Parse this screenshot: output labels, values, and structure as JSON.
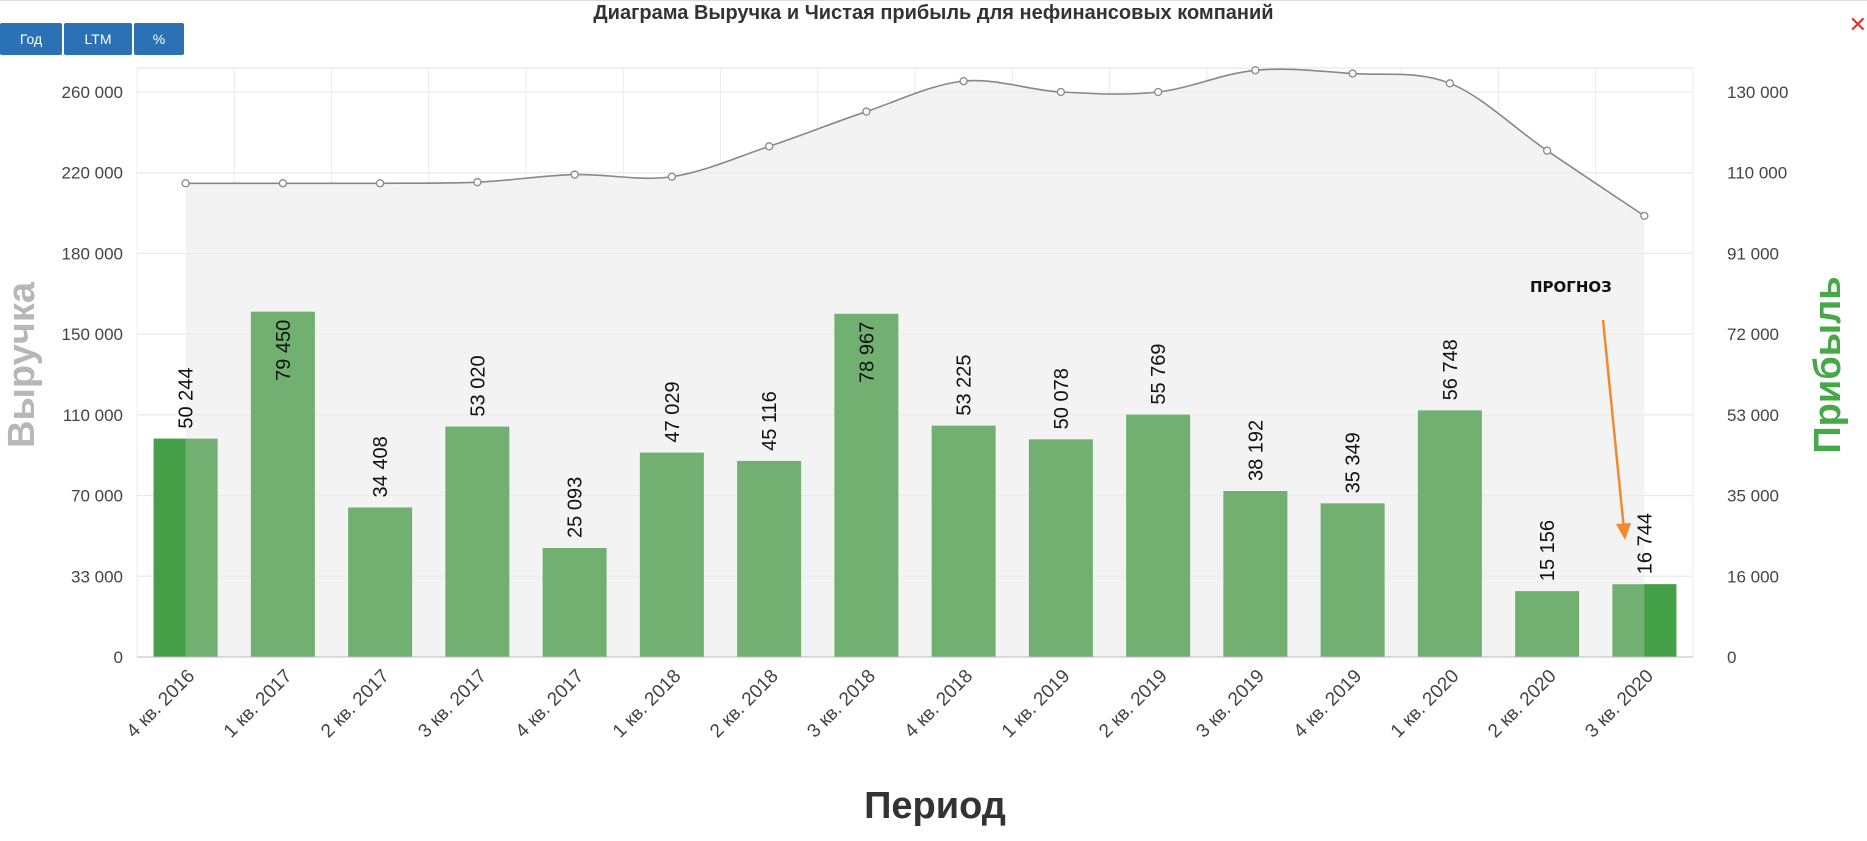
{
  "toolbar": {
    "buttons": [
      "Год",
      "LTM",
      "%"
    ]
  },
  "chart_data": {
    "type": "bar",
    "title": "Диаграма Выручка и Чистая прибыль для нефинансовых компаний",
    "xlabel": "Период",
    "ylabel_left": "Выручка",
    "ylabel_right": "Прибыль",
    "categories": [
      "4 кв. 2016",
      "1 кв. 2017",
      "2 кв. 2017",
      "3 кв. 2017",
      "4 кв. 2017",
      "1 кв. 2018",
      "2 кв. 2018",
      "3 кв. 2018",
      "4 кв. 2018",
      "1 кв. 2019",
      "2 кв. 2019",
      "3 кв. 2019",
      "4 кв. 2019",
      "1 кв. 2020",
      "2 кв. 2020",
      "3 кв. 2020"
    ],
    "left_ticks": [
      "0",
      "33 000",
      "70 000",
      "110 000",
      "150 000",
      "180 000",
      "220 000",
      "260 000"
    ],
    "right_ticks": [
      "0",
      "16 000",
      "35 000",
      "53 000",
      "72 000",
      "91 000",
      "110 000",
      "130 000"
    ],
    "ylim_left": [
      0,
      260000
    ],
    "ylim_right": [
      0,
      130000
    ],
    "series": [
      {
        "type": "bar",
        "axis": "right",
        "values": [
          50244,
          79450,
          34408,
          53020,
          25093,
          47029,
          45116,
          78967,
          53225,
          50078,
          55769,
          38192,
          35349,
          56748,
          15156,
          16744
        ],
        "labels": [
          "50 244",
          "79 450",
          "34 408",
          "53 020",
          "25 093",
          "47 029",
          "45 116",
          "78 967",
          "53 225",
          "50 078",
          "55 769",
          "38 192",
          "35 349",
          "56 748",
          "15 156",
          "16 744"
        ],
        "color": "#71b071"
      },
      {
        "type": "area",
        "axis": "left",
        "values": [
          218000,
          218000,
          218000,
          218500,
          222000,
          221000,
          235000,
          251000,
          265000,
          260000,
          260000,
          270000,
          268500,
          264000,
          233000,
          203000
        ],
        "color": "#888888"
      }
    ],
    "annotation": {
      "text": "ПРОГНОЗ",
      "arrow_color": "#f08a30"
    },
    "grid": true,
    "highlight_color": "#43a047"
  }
}
